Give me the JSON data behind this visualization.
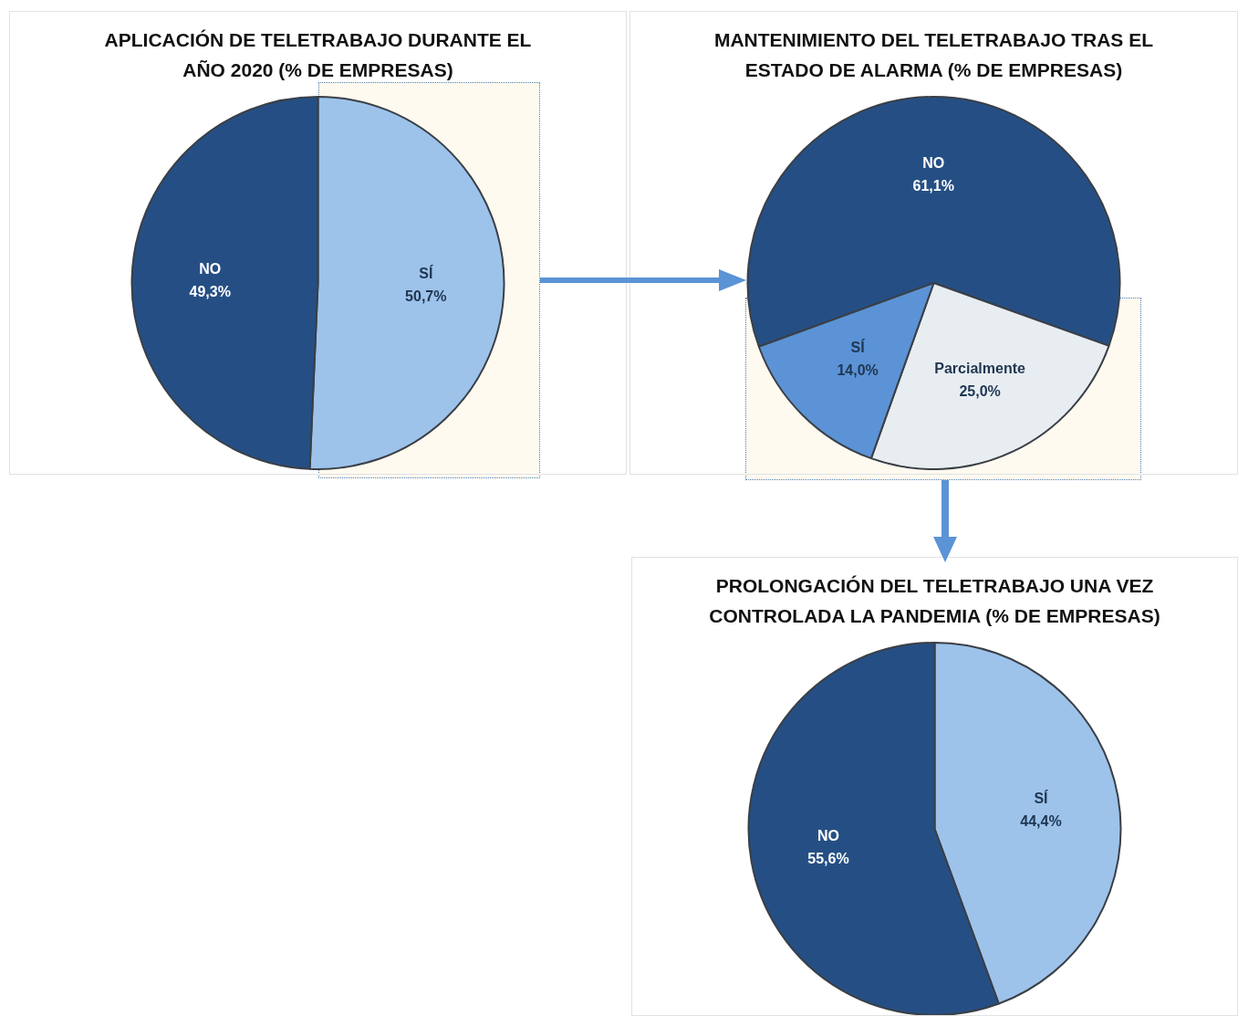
{
  "chart_data": [
    {
      "type": "pie",
      "title": "APLICACIÓN DE TELETRABAJO DURANTE EL AÑO 2020 (% DE EMPRESAS)",
      "categories": [
        "SÍ",
        "NO"
      ],
      "values": [
        50.7,
        49.3
      ],
      "colors": [
        "#9dc3eb",
        "#254f84"
      ],
      "value_labels": [
        "50,7%",
        "49,3%"
      ]
    },
    {
      "type": "pie",
      "title": "MANTENIMIENTO DEL TELETRABAJO TRAS EL ESTADO DE ALARMA (% DE EMPRESAS)",
      "categories": [
        "NO",
        "Parcialmente",
        "SÍ"
      ],
      "values": [
        61.1,
        25.0,
        14.0
      ],
      "colors": [
        "#254f84",
        "#e8edf2",
        "#5b93d6"
      ],
      "value_labels": [
        "61,1%",
        "25,0%",
        "14,0%"
      ]
    },
    {
      "type": "pie",
      "title": "PROLONGACIÓN DEL TELETRABAJO UNA VEZ CONTROLADA LA PANDEMIA (% DE EMPRESAS)",
      "categories": [
        "SÍ",
        "NO"
      ],
      "values": [
        44.4,
        55.6
      ],
      "colors": [
        "#9dc3eb",
        "#254f84"
      ],
      "value_labels": [
        "44,4%",
        "55,6%"
      ]
    }
  ]
}
